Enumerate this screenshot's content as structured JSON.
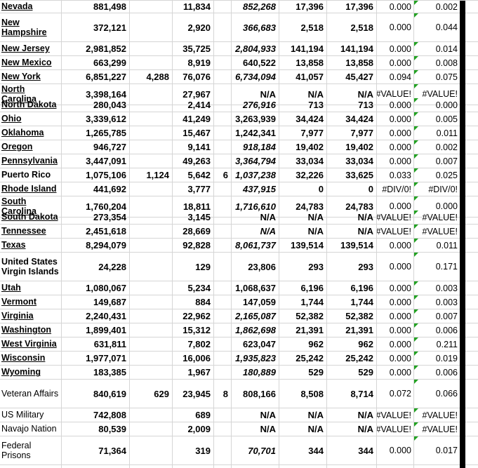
{
  "colors": {
    "background": "#ffffff",
    "gridline": "#d5d5d5",
    "text": "#000000",
    "error_flag_green": "#21a121",
    "thick_border": "#000000"
  },
  "table": {
    "rows": [
      {
        "name": "Nevada",
        "name_style": "state",
        "tall": false,
        "b": "881,498",
        "c": "",
        "d": "11,834",
        "e": "",
        "f": "852,268",
        "f_italic": true,
        "g": "17,396",
        "h": "17,396",
        "i": "0.000",
        "j": "0.002",
        "flag_j": true
      },
      {
        "name": "New Hampshire",
        "name_style": "state",
        "tall": true,
        "b": "372,121",
        "c": "",
        "d": "2,920",
        "e": "",
        "f": "366,683",
        "f_italic": true,
        "g": "2,518",
        "h": "2,518",
        "i": "0.000",
        "j": "0.044",
        "flag_j": true
      },
      {
        "name": "New Jersey",
        "name_style": "state",
        "tall": false,
        "b": "2,981,852",
        "c": "",
        "d": "35,725",
        "e": "",
        "f": "2,804,933",
        "f_italic": true,
        "g": "141,194",
        "h": "141,194",
        "i": "0.000",
        "j": "0.014",
        "flag_j": true
      },
      {
        "name": "New Mexico",
        "name_style": "state",
        "tall": false,
        "b": "663,299",
        "c": "",
        "d": "8,919",
        "e": "",
        "f": "640,522",
        "f_italic": false,
        "g": "13,858",
        "h": "13,858",
        "i": "0.000",
        "j": "0.008",
        "flag_j": true
      },
      {
        "name": "New York",
        "name_style": "state",
        "tall": false,
        "b": "6,851,227",
        "c": "4,288",
        "d": "76,076",
        "e": "",
        "f": "6,734,094",
        "f_italic": true,
        "g": "41,057",
        "h": "45,427",
        "i": "0.094",
        "j": "0.075",
        "flag_j": true
      },
      {
        "name": "North Carolina",
        "name_style": "state",
        "tall": false,
        "b": "3,398,164",
        "c": "",
        "d": "27,967",
        "e": "",
        "f": "N/A",
        "f_italic": false,
        "g": "N/A",
        "h": "N/A",
        "i": "#VALUE!",
        "j": "#VALUE!",
        "flag_j": true
      },
      {
        "name": "North Dakota",
        "name_style": "state",
        "tall": false,
        "b": "280,043",
        "c": "",
        "d": "2,414",
        "e": "",
        "f": "276,916",
        "f_italic": true,
        "g": "713",
        "h": "713",
        "i": "0.000",
        "j": "0.000",
        "flag_j": true
      },
      {
        "name": "Ohio",
        "name_style": "state",
        "tall": false,
        "b": "3,339,612",
        "c": "",
        "d": "41,249",
        "e": "",
        "f": "3,263,939",
        "f_italic": false,
        "g": "34,424",
        "h": "34,424",
        "i": "0.000",
        "j": "0.005",
        "flag_j": true
      },
      {
        "name": "Oklahoma",
        "name_style": "state",
        "tall": false,
        "b": "1,265,785",
        "c": "",
        "d": "15,467",
        "e": "",
        "f": "1,242,341",
        "f_italic": false,
        "g": "7,977",
        "h": "7,977",
        "i": "0.000",
        "j": "0.011",
        "flag_j": true
      },
      {
        "name": "Oregon",
        "name_style": "state",
        "tall": false,
        "b": "946,727",
        "c": "",
        "d": "9,141",
        "e": "",
        "f": "918,184",
        "f_italic": true,
        "g": "19,402",
        "h": "19,402",
        "i": "0.000",
        "j": "0.002",
        "flag_j": true
      },
      {
        "name": "Pennsylvania",
        "name_style": "state",
        "tall": false,
        "b": "3,447,091",
        "c": "",
        "d": "49,263",
        "e": "",
        "f": "3,364,794",
        "f_italic": true,
        "g": "33,034",
        "h": "33,034",
        "i": "0.000",
        "j": "0.007",
        "flag_j": true
      },
      {
        "name": "Puerto Rico",
        "name_style": "bold",
        "tall": false,
        "b": "1,075,106",
        "c": "1,124",
        "d": "5,642",
        "e": "6",
        "f": "1,037,238",
        "f_italic": true,
        "g": "32,226",
        "h": "33,625",
        "i": "0.033",
        "j": "0.025",
        "flag_j": true
      },
      {
        "name": "Rhode Island",
        "name_style": "state",
        "tall": false,
        "b": "441,692",
        "c": "",
        "d": "3,777",
        "e": "",
        "f": "437,915",
        "f_italic": true,
        "g": "0",
        "h": "0",
        "i": "#DIV/0!",
        "j": "#DIV/0!",
        "flag_j": true
      },
      {
        "name": "South Carolina",
        "name_style": "state",
        "tall": false,
        "b": "1,760,204",
        "c": "",
        "d": "18,811",
        "e": "",
        "f": "1,716,610",
        "f_italic": true,
        "g": "24,783",
        "h": "24,783",
        "i": "0.000",
        "j": "0.000",
        "flag_j": true
      },
      {
        "name": "South Dakota",
        "name_style": "state",
        "tall": false,
        "b": "273,354",
        "c": "",
        "d": "3,145",
        "e": "",
        "f": "N/A",
        "f_italic": false,
        "g": "N/A",
        "h": "N/A",
        "i": "#VALUE!",
        "j": "#VALUE!",
        "flag_j": true
      },
      {
        "name": "Tennessee",
        "name_style": "state",
        "tall": false,
        "b": "2,451,618",
        "c": "",
        "d": "28,669",
        "e": "",
        "f": "N/A",
        "f_italic": true,
        "g": "N/A",
        "h": "N/A",
        "i": "#VALUE!",
        "j": "#VALUE!",
        "flag_j": true
      },
      {
        "name": "Texas",
        "name_style": "state",
        "tall": false,
        "b": "8,294,079",
        "c": "",
        "d": "92,828",
        "e": "",
        "f": "8,061,737",
        "f_italic": true,
        "g": "139,514",
        "h": "139,514",
        "i": "0.000",
        "j": "0.011",
        "flag_j": true
      },
      {
        "name": "United States Virgin Islands",
        "name_style": "bold",
        "tall": true,
        "b": "24,228",
        "c": "",
        "d": "129",
        "e": "",
        "f": "23,806",
        "f_italic": false,
        "g": "293",
        "h": "293",
        "i": "0.000",
        "j": "0.171",
        "flag_j": true
      },
      {
        "name": "Utah",
        "name_style": "state",
        "tall": false,
        "b": "1,080,067",
        "c": "",
        "d": "5,234",
        "e": "",
        "f": "1,068,637",
        "f_italic": false,
        "g": "6,196",
        "h": "6,196",
        "i": "0.000",
        "j": "0.003",
        "flag_j": true
      },
      {
        "name": "Vermont",
        "name_style": "state",
        "tall": false,
        "b": "149,687",
        "c": "",
        "d": "884",
        "e": "",
        "f": "147,059",
        "f_italic": false,
        "g": "1,744",
        "h": "1,744",
        "i": "0.000",
        "j": "0.003",
        "flag_j": true
      },
      {
        "name": "Virginia",
        "name_style": "state",
        "tall": false,
        "b": "2,240,431",
        "c": "",
        "d": "22,962",
        "e": "",
        "f": "2,165,087",
        "f_italic": true,
        "g": "52,382",
        "h": "52,382",
        "i": "0.000",
        "j": "0.007",
        "flag_j": true
      },
      {
        "name": "Washington",
        "name_style": "state",
        "tall": false,
        "b": "1,899,401",
        "c": "",
        "d": "15,312",
        "e": "",
        "f": "1,862,698",
        "f_italic": true,
        "g": "21,391",
        "h": "21,391",
        "i": "0.000",
        "j": "0.006",
        "flag_j": true
      },
      {
        "name": "West Virginia",
        "name_style": "state",
        "tall": false,
        "b": "631,811",
        "c": "",
        "d": "7,802",
        "e": "",
        "f": "623,047",
        "f_italic": false,
        "g": "962",
        "h": "962",
        "i": "0.000",
        "j": "0.211",
        "flag_j": true
      },
      {
        "name": "Wisconsin",
        "name_style": "state",
        "tall": false,
        "b": "1,977,071",
        "c": "",
        "d": "16,006",
        "e": "",
        "f": "1,935,823",
        "f_italic": true,
        "g": "25,242",
        "h": "25,242",
        "i": "0.000",
        "j": "0.019",
        "flag_j": true
      },
      {
        "name": "Wyoming",
        "name_style": "state",
        "tall": false,
        "b": "183,385",
        "c": "",
        "d": "1,967",
        "e": "",
        "f": "180,889",
        "f_italic": true,
        "g": "529",
        "h": "529",
        "i": "0.000",
        "j": "0.006",
        "flag_j": true
      },
      {
        "name": "Veteran Affairs",
        "name_style": "plain",
        "tall": true,
        "b": "840,619",
        "c": "629",
        "d": "23,945",
        "e": "8",
        "f": "808,166",
        "f_italic": false,
        "g": "8,508",
        "h": "8,714",
        "i": "0.072",
        "j": "0.066",
        "flag_j": true
      },
      {
        "name": "US Military",
        "name_style": "plain",
        "tall": false,
        "b": "742,808",
        "c": "",
        "d": "689",
        "e": "",
        "f": "N/A",
        "f_italic": false,
        "g": "N/A",
        "h": "N/A",
        "i": "#VALUE!",
        "j": "#VALUE!",
        "flag_j": true
      },
      {
        "name": "Navajo Nation",
        "name_style": "plain",
        "tall": false,
        "b": "80,539",
        "c": "",
        "d": "2,009",
        "e": "",
        "f": "N/A",
        "f_italic": false,
        "g": "N/A",
        "h": "N/A",
        "i": "#VALUE!",
        "j": "#VALUE!",
        "flag_j": true
      },
      {
        "name": "Federal Prisons",
        "name_style": "plain",
        "tall": true,
        "b": "71,364",
        "c": "",
        "d": "319",
        "e": "",
        "f": "70,701",
        "f_italic": true,
        "g": "344",
        "h": "344",
        "i": "0.000",
        "j": "0.017",
        "flag_j": true
      }
    ]
  }
}
